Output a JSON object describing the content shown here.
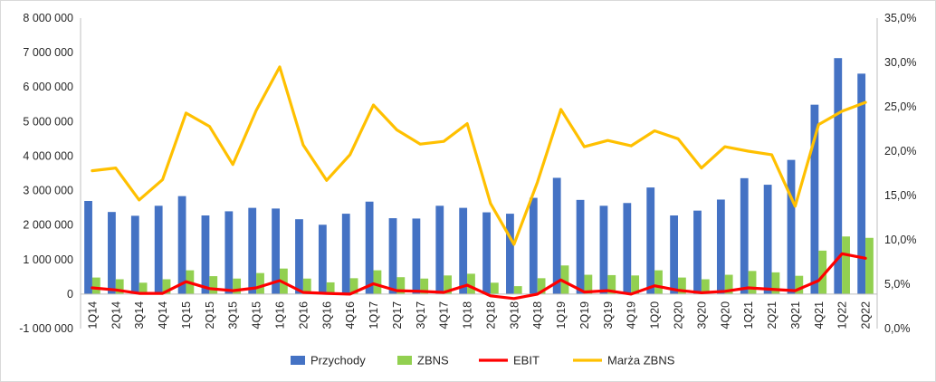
{
  "chart_data": {
    "type": "bar",
    "categories": [
      "1Q14",
      "2Q14",
      "3Q14",
      "4Q14",
      "1Q15",
      "2Q15",
      "3Q15",
      "4Q15",
      "1Q16",
      "2Q16",
      "3Q16",
      "4Q16",
      "1Q17",
      "2Q17",
      "3Q17",
      "4Q17",
      "1Q18",
      "2Q18",
      "3Q18",
      "4Q18",
      "1Q19",
      "2Q19",
      "3Q19",
      "4Q19",
      "1Q20",
      "2Q20",
      "3Q20",
      "4Q20",
      "1Q21",
      "2Q21",
      "3Q21",
      "4Q21",
      "1Q22",
      "2Q22"
    ],
    "series": [
      {
        "name": "Przychody",
        "type": "bar",
        "axis": "left",
        "color": "#4472c4",
        "values": [
          2700000,
          2380000,
          2270000,
          2560000,
          2840000,
          2280000,
          2400000,
          2500000,
          2480000,
          2170000,
          2010000,
          2330000,
          2680000,
          2200000,
          2190000,
          2560000,
          2500000,
          2370000,
          2330000,
          2790000,
          3370000,
          2730000,
          2560000,
          2640000,
          3090000,
          2280000,
          2420000,
          2740000,
          3360000,
          3170000,
          3890000,
          5490000,
          6840000,
          6390000
        ]
      },
      {
        "name": "ZBNS",
        "type": "bar",
        "axis": "left",
        "color": "#92d050",
        "values": [
          480000,
          430000,
          330000,
          430000,
          690000,
          520000,
          450000,
          610000,
          740000,
          450000,
          340000,
          460000,
          690000,
          490000,
          450000,
          540000,
          590000,
          330000,
          230000,
          460000,
          830000,
          560000,
          550000,
          540000,
          690000,
          480000,
          430000,
          560000,
          670000,
          630000,
          530000,
          1260000,
          1670000,
          1630000
        ]
      },
      {
        "name": "EBIT",
        "type": "line",
        "axis": "left",
        "color": "#ff0000",
        "values": [
          180000,
          120000,
          20000,
          20000,
          360000,
          160000,
          100000,
          180000,
          390000,
          50000,
          20000,
          0,
          300000,
          100000,
          80000,
          50000,
          260000,
          -50000,
          -130000,
          0,
          410000,
          60000,
          100000,
          0,
          240000,
          110000,
          40000,
          80000,
          180000,
          140000,
          100000,
          390000,
          1170000,
          1040000
        ]
      },
      {
        "name": "Marża ZBNS",
        "type": "line",
        "axis": "right",
        "color": "#ffc000",
        "values": [
          0.178,
          0.181,
          0.145,
          0.168,
          0.243,
          0.228,
          0.185,
          0.246,
          0.295,
          0.207,
          0.167,
          0.196,
          0.252,
          0.224,
          0.208,
          0.211,
          0.231,
          0.141,
          0.095,
          0.165,
          0.247,
          0.205,
          0.212,
          0.206,
          0.223,
          0.214,
          0.181,
          0.205,
          0.2,
          0.196,
          0.138,
          0.23,
          0.245,
          0.255
        ]
      }
    ],
    "y_left": {
      "min": -1000000,
      "max": 8000000,
      "step": 1000000,
      "tick_labels": [
        "-1 000 000",
        "0",
        "1 000 000",
        "2 000 000",
        "3 000 000",
        "4 000 000",
        "5 000 000",
        "6 000 000",
        "7 000 000",
        "8 000 000"
      ]
    },
    "y_right": {
      "min": 0,
      "max": 0.35,
      "step": 0.05,
      "tick_labels": [
        "0,0%",
        "5,0%",
        "10,0%",
        "15,0%",
        "20,0%",
        "25,0%",
        "30,0%",
        "35,0%"
      ]
    },
    "grid": false,
    "legend_position": "bottom",
    "title": "",
    "xlabel": "",
    "ylabel": ""
  }
}
